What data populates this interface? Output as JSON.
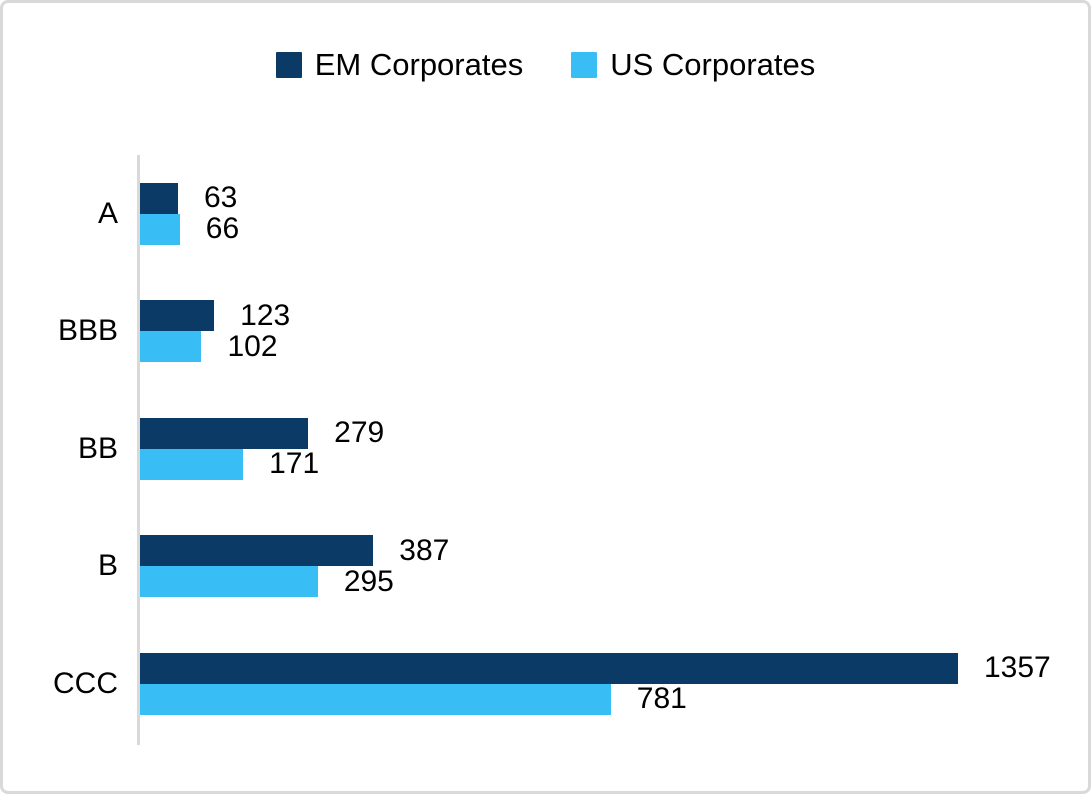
{
  "legend": [
    {
      "label": "EM Corporates",
      "color": "#0b3a67"
    },
    {
      "label": "US Corporates",
      "color": "#38bdf5"
    }
  ],
  "chart_data": {
    "type": "bar",
    "orientation": "horizontal",
    "title": "",
    "xlabel": "",
    "ylabel": "",
    "categories": [
      "A",
      "BBB",
      "BB",
      "B",
      "CCC"
    ],
    "series": [
      {
        "name": "EM Corporates",
        "color": "#0b3a67",
        "values": [
          63,
          123,
          279,
          387,
          1357
        ]
      },
      {
        "name": "US Corporates",
        "color": "#38bdf5",
        "values": [
          66,
          102,
          171,
          295,
          781
        ]
      }
    ],
    "value_labels": true,
    "xlim": [
      0,
      1357
    ],
    "grid": false,
    "legend_position": "top",
    "axis_line_color": "#d9d9d9",
    "text_color": "#000000"
  }
}
